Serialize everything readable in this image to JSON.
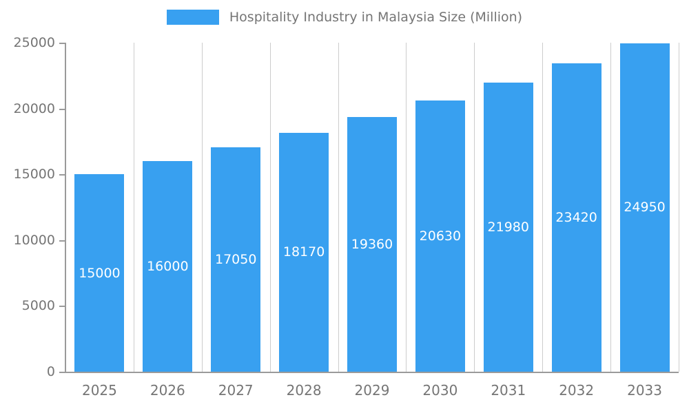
{
  "chart_data": {
    "type": "bar",
    "title": "Hospitality Industry in Malaysia Size (Million)",
    "categories": [
      "2025",
      "2026",
      "2027",
      "2028",
      "2029",
      "2030",
      "2031",
      "2032",
      "2033"
    ],
    "values": [
      15000,
      16000,
      17050,
      18170,
      19360,
      20630,
      21980,
      23420,
      24950
    ],
    "xlabel": "",
    "ylabel": "",
    "ylim": [
      0,
      25000
    ],
    "yticks": [
      0,
      5000,
      10000,
      15000,
      20000,
      25000
    ],
    "grid": "vertical-only",
    "legend_position": "top-center",
    "bar_color": "#38a0f0",
    "grid_color": "#cccccc",
    "axis_color": "#9a9a9a",
    "tick_label_color": "#757575",
    "value_label_color": "#ffffff"
  }
}
